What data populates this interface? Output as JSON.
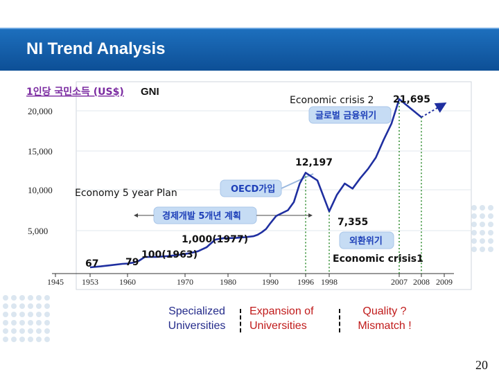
{
  "slide": {
    "title": "NI Trend Analysis",
    "page_number": "20"
  },
  "chart_data": {
    "type": "line",
    "title": "",
    "ylabel_ko": "1인당 국민소득 (US$)",
    "ylabel_en": "GNI",
    "ylim": [
      0,
      20000
    ],
    "xlim": [
      1945,
      2009
    ],
    "yticks": [
      {
        "value": 20000,
        "label": "20,000"
      },
      {
        "value": 15000,
        "label": "15,000"
      },
      {
        "value": 10000,
        "label": "10,000"
      },
      {
        "value": 5000,
        "label": "5,000"
      }
    ],
    "xticks": [
      {
        "value": 1945,
        "label": "1945"
      },
      {
        "value": 1953,
        "label": "1953"
      },
      {
        "value": 1960,
        "label": "1960"
      },
      {
        "value": 1970,
        "label": "1970"
      },
      {
        "value": 1980,
        "label": "1980"
      },
      {
        "value": 1990,
        "label": "1990"
      },
      {
        "value": 1996,
        "label": "1996"
      },
      {
        "value": 1998,
        "label": "1998"
      },
      {
        "value": 2007,
        "label": "2007"
      },
      {
        "value": 2008,
        "label": "2008"
      },
      {
        "value": 2009,
        "label": "2009"
      }
    ],
    "series": [
      {
        "color": "#1f2fa0",
        "x": [
          1953,
          1955,
          1957,
          1959,
          1960,
          1961,
          1962,
          1963,
          1965,
          1967,
          1969,
          1971,
          1973,
          1975,
          1977,
          1979,
          1980,
          1982,
          1984,
          1986,
          1987,
          1988,
          1989,
          1990,
          1991,
          1993,
          1994,
          1995,
          1996,
          1997,
          1998,
          1999,
          2000,
          2001,
          2002,
          2003,
          2004,
          2005,
          2006,
          2007,
          2008
        ],
        "y": [
          67,
          70,
          74,
          78,
          79,
          82,
          88,
          100,
          105,
          142,
          210,
          290,
          396,
          602,
          1000,
          1676,
          1645,
          1800,
          2080,
          2500,
          3150,
          4300,
          5200,
          5900,
          6800,
          7500,
          8500,
          10800,
          12197,
          11200,
          7355,
          9400,
          10800,
          10150,
          11500,
          12700,
          14150,
          16400,
          18400,
          21695,
          19200
        ]
      }
    ],
    "projection": {
      "color": "#1f2fa0",
      "x": [
        2008,
        2009
      ],
      "y": [
        19200,
        21000
      ]
    },
    "dashed_markers": [
      {
        "x": 1996,
        "y": 12197
      },
      {
        "x": 1998,
        "y": 7355
      },
      {
        "x": 2007,
        "y": 21695
      },
      {
        "x": 2008,
        "y": 19200
      }
    ],
    "annotations": [
      {
        "text": "Economic crisis 2",
        "color": "#111111"
      },
      {
        "text": "21,695",
        "color": "#111111"
      },
      {
        "text": "글로벌 금융위기",
        "color": "#1d3fb8"
      },
      {
        "text": "12,197",
        "color": "#111111"
      },
      {
        "text": "OECD가입",
        "color": "#1d3fb8"
      },
      {
        "text": "Economy 5 year Plan",
        "color": "#111111"
      },
      {
        "text": "경제개발 5개년 계획",
        "color": "#1d3fb8"
      },
      {
        "text": "7,355",
        "color": "#111111"
      },
      {
        "text": "1,000(1977)",
        "color": "#111111"
      },
      {
        "text": "외환위기",
        "color": "#1d3fb8"
      },
      {
        "text": "100(1963)",
        "color": "#111111"
      },
      {
        "text": "Economic crisis1",
        "color": "#111111"
      },
      {
        "text": "67",
        "color": "#111111"
      },
      {
        "text": "79",
        "color": "#111111"
      }
    ]
  },
  "periods": [
    {
      "line1": "Specialized",
      "line2": "Universities",
      "color": "#232a8a"
    },
    {
      "line1": "Expansion of",
      "line2": "Universities",
      "color": "#c01a1a"
    },
    {
      "line1": "Quality ?",
      "line2": "Mismatch !",
      "color": "#c01a1a"
    }
  ],
  "colors": {
    "title_bar": "#1061b0",
    "line": "#1f2fa0",
    "bubble": "#c6dcf4",
    "bubble_text": "#1d3fb8"
  }
}
